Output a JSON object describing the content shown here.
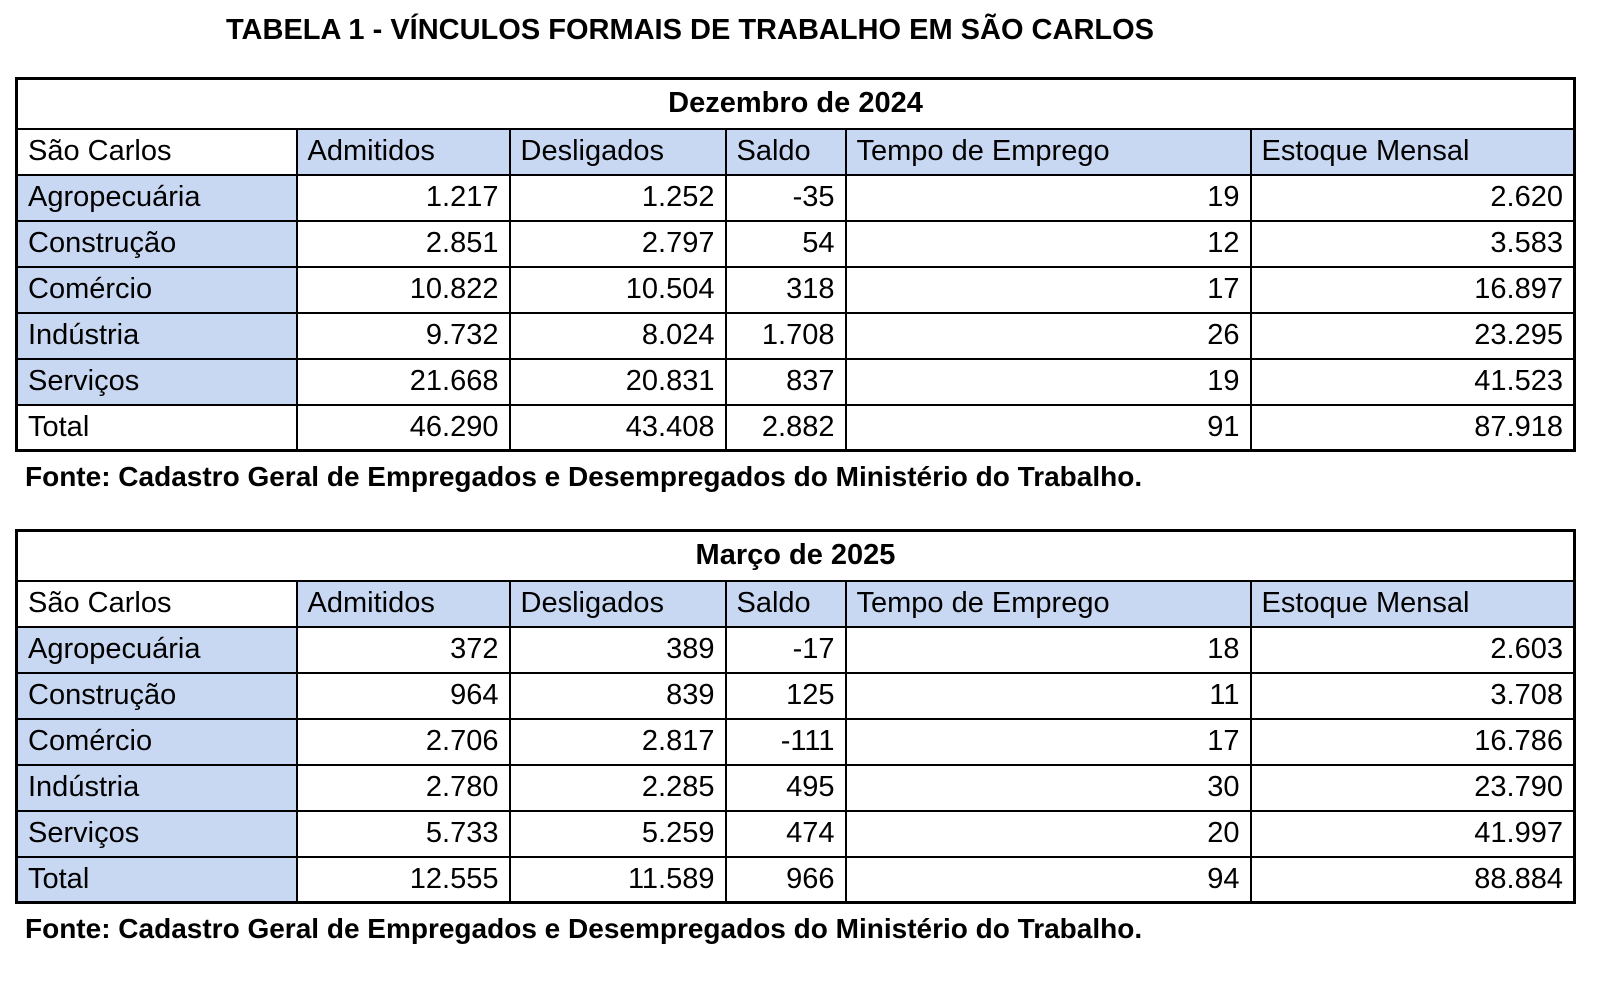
{
  "page": {
    "title": "TABELA 1 - VÍNCULOS FORMAIS DE TRABALHO EM SÃO CARLOS"
  },
  "colors": {
    "header_fill": "#C9D8F2",
    "border": "#000000"
  },
  "tables": [
    {
      "period": "Dezembro de 2024",
      "columns": [
        "São Carlos",
        "Admitidos",
        "Desligados",
        "Saldo",
        "Tempo de Emprego",
        "Estoque Mensal"
      ],
      "rows": [
        {
          "label": "Agropecuária",
          "shaded": true,
          "values": [
            "1.217",
            "1.252",
            "-35",
            "19",
            "2.620"
          ]
        },
        {
          "label": "Construção",
          "shaded": true,
          "values": [
            "2.851",
            "2.797",
            "54",
            "12",
            "3.583"
          ]
        },
        {
          "label": "Comércio",
          "shaded": true,
          "values": [
            "10.822",
            "10.504",
            "318",
            "17",
            "16.897"
          ]
        },
        {
          "label": "Indústria",
          "shaded": true,
          "values": [
            "9.732",
            "8.024",
            "1.708",
            "26",
            "23.295"
          ]
        },
        {
          "label": "Serviços",
          "shaded": true,
          "values": [
            "21.668",
            "20.831",
            "837",
            "19",
            "41.523"
          ]
        },
        {
          "label": "Total",
          "shaded": false,
          "values": [
            "46.290",
            "43.408",
            "2.882",
            "91",
            "87.918"
          ]
        }
      ],
      "source": "Fonte: Cadastro Geral de Empregados e Desempregados do Ministério do Trabalho."
    },
    {
      "period": "Março de 2025",
      "columns": [
        "São Carlos",
        "Admitidos",
        "Desligados",
        "Saldo",
        "Tempo de Emprego",
        "Estoque Mensal"
      ],
      "rows": [
        {
          "label": "Agropecuária",
          "shaded": true,
          "values": [
            "372",
            "389",
            "-17",
            "18",
            "2.603"
          ]
        },
        {
          "label": "Construção",
          "shaded": true,
          "values": [
            "964",
            "839",
            "125",
            "11",
            "3.708"
          ]
        },
        {
          "label": "Comércio",
          "shaded": true,
          "values": [
            "2.706",
            "2.817",
            "-111",
            "17",
            "16.786"
          ]
        },
        {
          "label": "Indústria",
          "shaded": true,
          "values": [
            "2.780",
            "2.285",
            "495",
            "30",
            "23.790"
          ]
        },
        {
          "label": "Serviços",
          "shaded": true,
          "values": [
            "5.733",
            "5.259",
            "474",
            "20",
            "41.997"
          ]
        },
        {
          "label": "Total",
          "shaded": true,
          "values": [
            "12.555",
            "11.589",
            "966",
            "94",
            "88.884"
          ]
        }
      ],
      "source": "Fonte: Cadastro Geral de Empregados e Desempregados do Ministério do Trabalho."
    }
  ]
}
